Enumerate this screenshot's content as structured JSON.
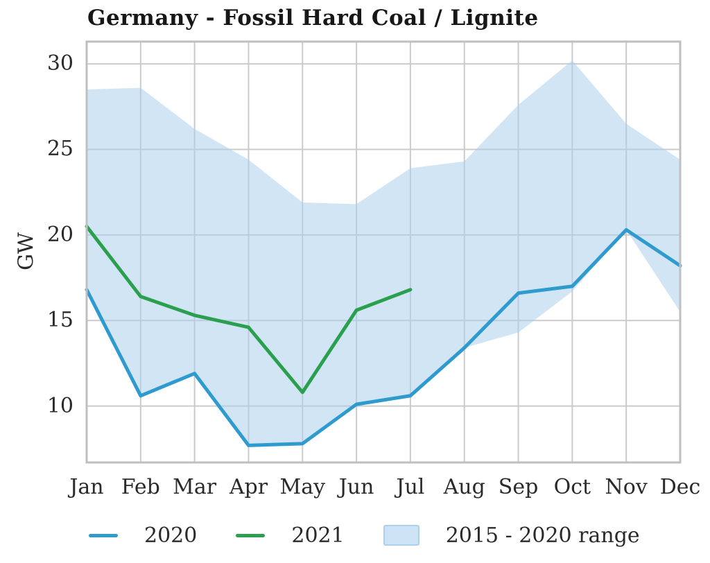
{
  "chart_data": {
    "type": "line",
    "title": "Germany - Fossil Hard Coal / Lignite",
    "ylabel": "GW",
    "xlabel": "",
    "categories": [
      "Jan",
      "Feb",
      "Mar",
      "Apr",
      "May",
      "Jun",
      "Jul",
      "Aug",
      "Sep",
      "Oct",
      "Nov",
      "Dec"
    ],
    "yticks": [
      10,
      15,
      20,
      25,
      30
    ],
    "ylim": [
      6.7,
      31.3
    ],
    "grid": true,
    "legend_position": "bottom",
    "series": [
      {
        "name": "2020",
        "color": "#2e9ace",
        "values": [
          16.8,
          10.6,
          11.9,
          7.7,
          7.8,
          10.1,
          10.6,
          13.4,
          16.6,
          17.0,
          20.3,
          18.2
        ]
      },
      {
        "name": "2021",
        "color": "#2aa04f",
        "values": [
          20.5,
          16.4,
          15.3,
          14.6,
          10.8,
          15.6,
          16.8
        ]
      }
    ],
    "band": {
      "label": "2015 - 2020 range",
      "color": "#abd0ec",
      "opacity": 0.55,
      "top": [
        28.5,
        28.6,
        26.2,
        24.4,
        21.9,
        21.8,
        23.9,
        24.3,
        27.6,
        30.2,
        26.5,
        24.4
      ],
      "bottom": [
        16.8,
        10.6,
        11.9,
        7.7,
        7.8,
        10.1,
        10.6,
        13.4,
        14.3,
        16.7,
        20.3,
        15.5
      ]
    },
    "colors": {
      "grid": "#cbcbcb",
      "border": "#bfbfbf",
      "text": "#2a2a2a",
      "title_text": "#171717",
      "background": "#ffffff"
    }
  }
}
